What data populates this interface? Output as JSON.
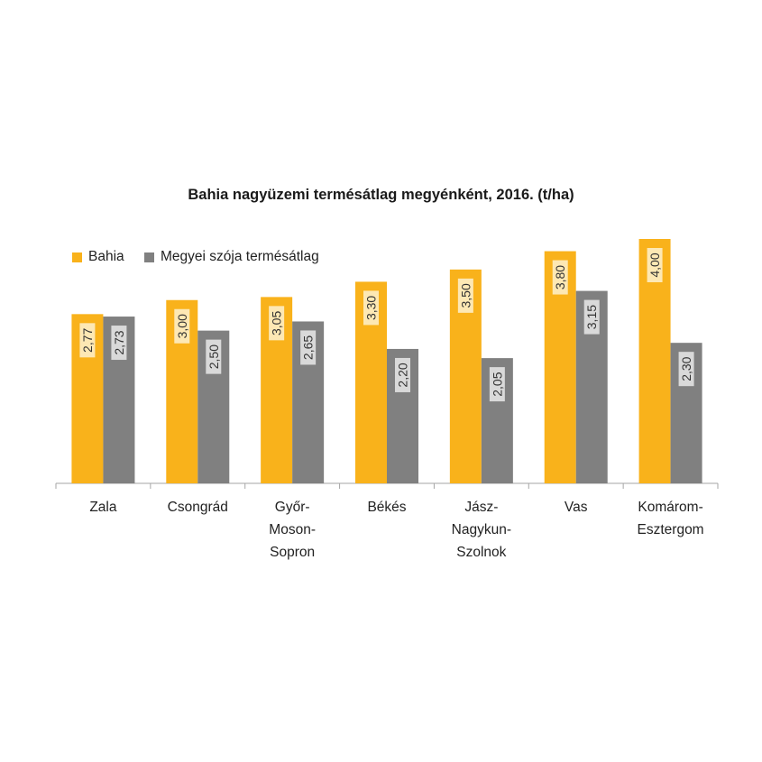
{
  "chart_data": {
    "type": "bar",
    "title": "Bahia nagyüzemi termésátlag megyénként, 2016. (t/ha)",
    "xlabel": "",
    "ylabel": "",
    "categories": [
      [
        "Zala"
      ],
      [
        "Csongrád"
      ],
      [
        "Győr-",
        "Moson-",
        "Sopron"
      ],
      [
        "Békés"
      ],
      [
        "Jász-",
        "Nagykun-",
        "Szolnok"
      ],
      [
        "Vas"
      ],
      [
        "Komárom-",
        "Esztergom"
      ]
    ],
    "series": [
      {
        "name": "Bahia",
        "values": [
          2.77,
          3.0,
          3.05,
          3.3,
          3.5,
          3.8,
          4.0
        ],
        "labels": [
          "2,77",
          "3,00",
          "3,05",
          "3,30",
          "3,50",
          "3,80",
          "4,00"
        ]
      },
      {
        "name": "Megyei szója termésátlag",
        "values": [
          2.73,
          2.5,
          2.65,
          2.2,
          2.05,
          3.15,
          2.3
        ],
        "labels": [
          "2,73",
          "2,50",
          "2,65",
          "2,20",
          "2,05",
          "3,15",
          "2,30"
        ]
      }
    ],
    "ylim": [
      0,
      4.0
    ],
    "grid": false,
    "legend_position": "top-left",
    "colors": {
      "Bahia": "#F9B21B",
      "Megyei szója termésátlag": "#808080",
      "label_box_bahia": "#FDE8B4",
      "label_box_megyei": "#D9D9D9",
      "axis": "#A6A6A6"
    }
  }
}
